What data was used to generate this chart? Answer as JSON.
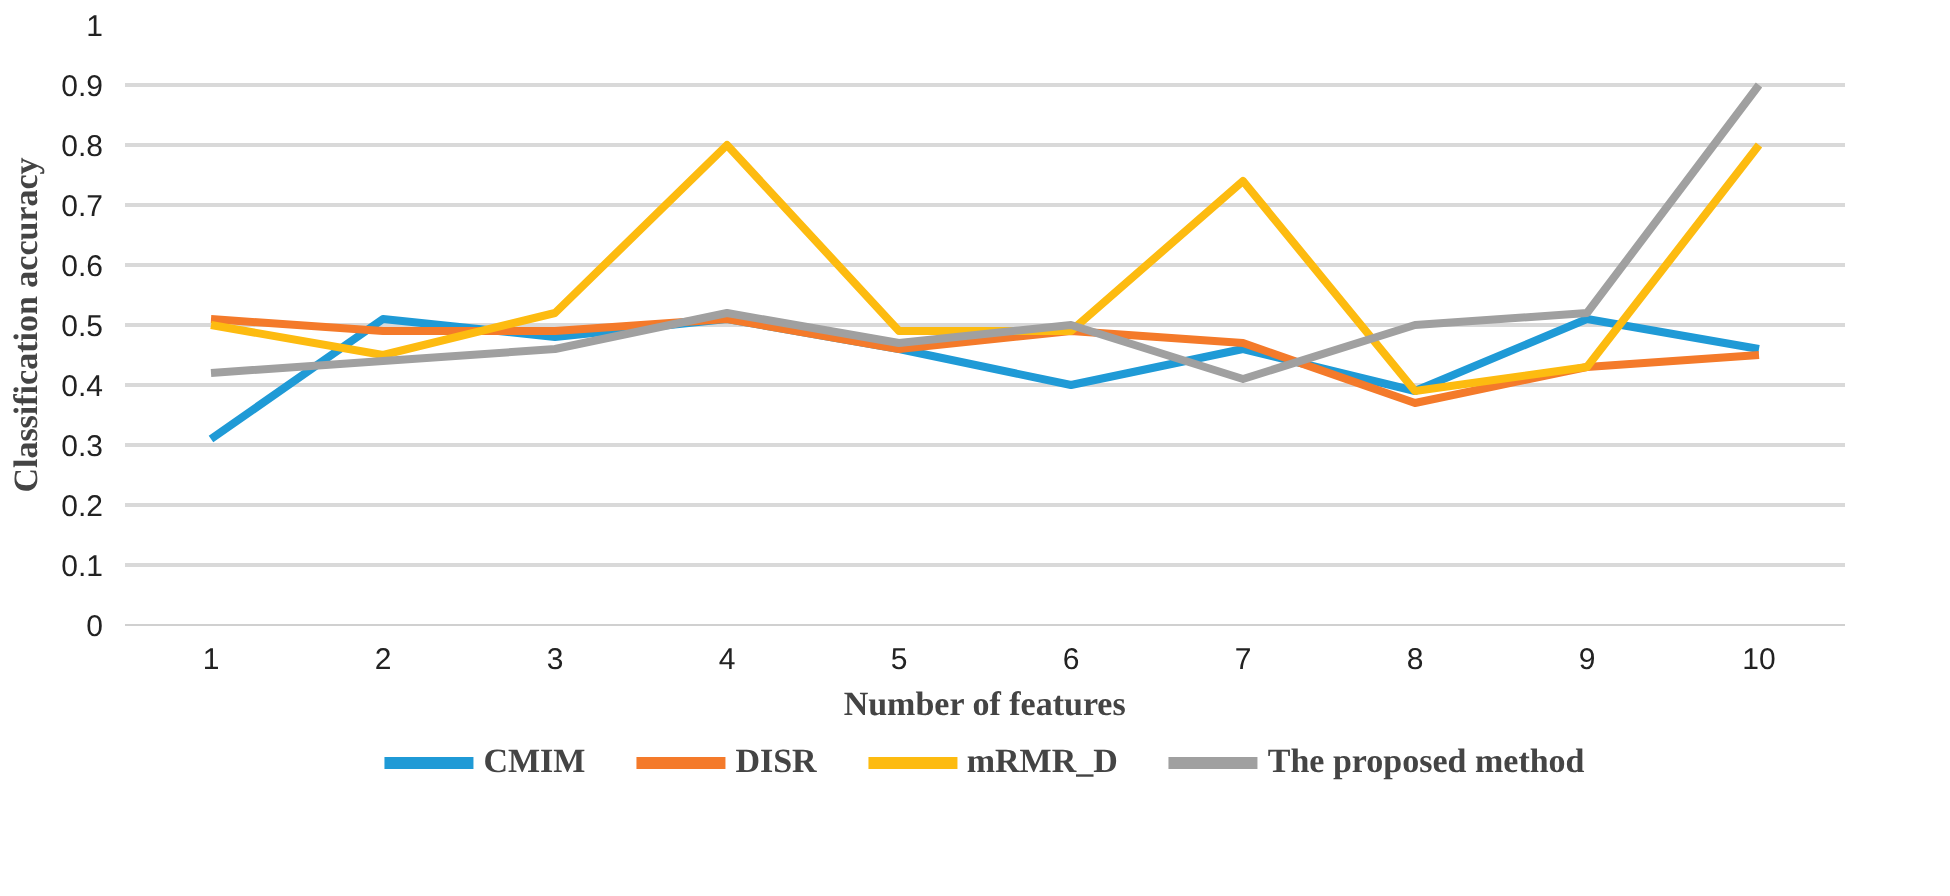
{
  "chart_data": {
    "type": "line",
    "xlabel": "Number of features",
    "ylabel": "Classification accuracy",
    "categories": [
      "1",
      "2",
      "3",
      "4",
      "5",
      "6",
      "7",
      "8",
      "9",
      "10"
    ],
    "series": [
      {
        "name": "CMIM",
        "color": "#1f9ad6",
        "values": [
          0.31,
          0.51,
          0.48,
          0.51,
          0.46,
          0.4,
          0.46,
          0.39,
          0.51,
          0.46
        ]
      },
      {
        "name": "DISR",
        "color": "#f47a2a",
        "values": [
          0.51,
          0.49,
          0.49,
          0.51,
          0.46,
          0.49,
          0.47,
          0.37,
          0.43,
          0.45
        ]
      },
      {
        "name": "mRMR_D",
        "color": "#fdbb10",
        "values": [
          0.5,
          0.45,
          0.52,
          0.8,
          0.49,
          0.49,
          0.74,
          0.39,
          0.43,
          0.8
        ]
      },
      {
        "name": "The proposed method",
        "color": "#a0a0a0",
        "values": [
          0.42,
          0.44,
          0.46,
          0.52,
          0.47,
          0.5,
          0.41,
          0.5,
          0.52,
          0.9
        ]
      }
    ],
    "ylim": [
      0,
      1
    ],
    "yticks": [
      0,
      0.1,
      0.2,
      0.3,
      0.4,
      0.5,
      0.6,
      0.7,
      0.8,
      0.9,
      1
    ],
    "grid": "y",
    "legend": "bottom",
    "line_style": "solid"
  }
}
